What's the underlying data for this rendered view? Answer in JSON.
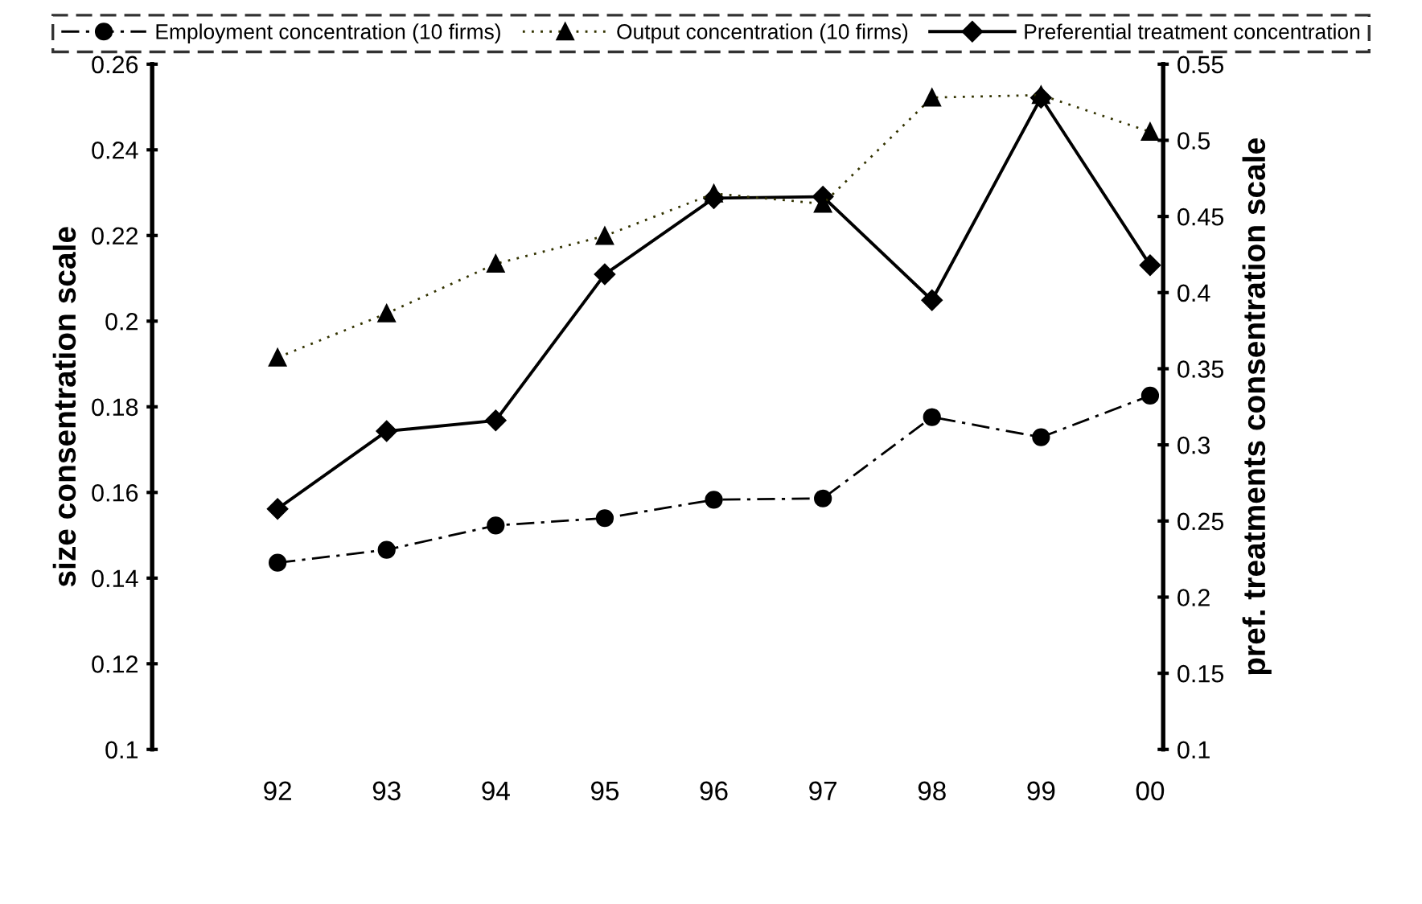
{
  "chart_data": {
    "type": "line",
    "categories": [
      "92",
      "93",
      "94",
      "95",
      "96",
      "97",
      "98",
      "99",
      "00"
    ],
    "ylabel": "size consentration scale",
    "y2label": "pref. treatments consentration scale",
    "ylim": [
      0.1,
      0.26
    ],
    "yticks": [
      0.1,
      0.12,
      0.14,
      0.16,
      0.18,
      0.2,
      0.22,
      0.24,
      0.26
    ],
    "y2lim": [
      0.1,
      0.55
    ],
    "y2ticks": [
      0.1,
      0.15,
      0.2,
      0.25,
      0.3,
      0.35,
      0.4,
      0.45,
      0.5,
      0.55
    ],
    "legend": "top",
    "grid": false,
    "series": [
      {
        "name": "Employment concentration (10 firms)",
        "color": "#000000",
        "marker": "circle",
        "line_style": "dashdot",
        "values": [
          0.1436,
          0.1466,
          0.1523,
          0.154,
          0.1583,
          0.1586,
          0.1776,
          0.1729,
          0.1826
        ]
      },
      {
        "name": "Output concentration (10 firms)",
        "color": "#333300",
        "marker": "triangle",
        "line_style": "dotted",
        "values": [
          0.1915,
          0.2018,
          0.2134,
          0.2199,
          0.2298,
          0.2274,
          0.2522,
          0.2528,
          0.2442
        ]
      },
      {
        "name": "Preferential treatment concentration",
        "color": "#000000",
        "marker": "diamond",
        "line_style": "solid",
        "axis": "y2",
        "values": [
          0.258,
          0.309,
          0.316,
          0.412,
          0.462,
          0.463,
          0.395,
          0.528,
          0.418
        ]
      }
    ]
  }
}
